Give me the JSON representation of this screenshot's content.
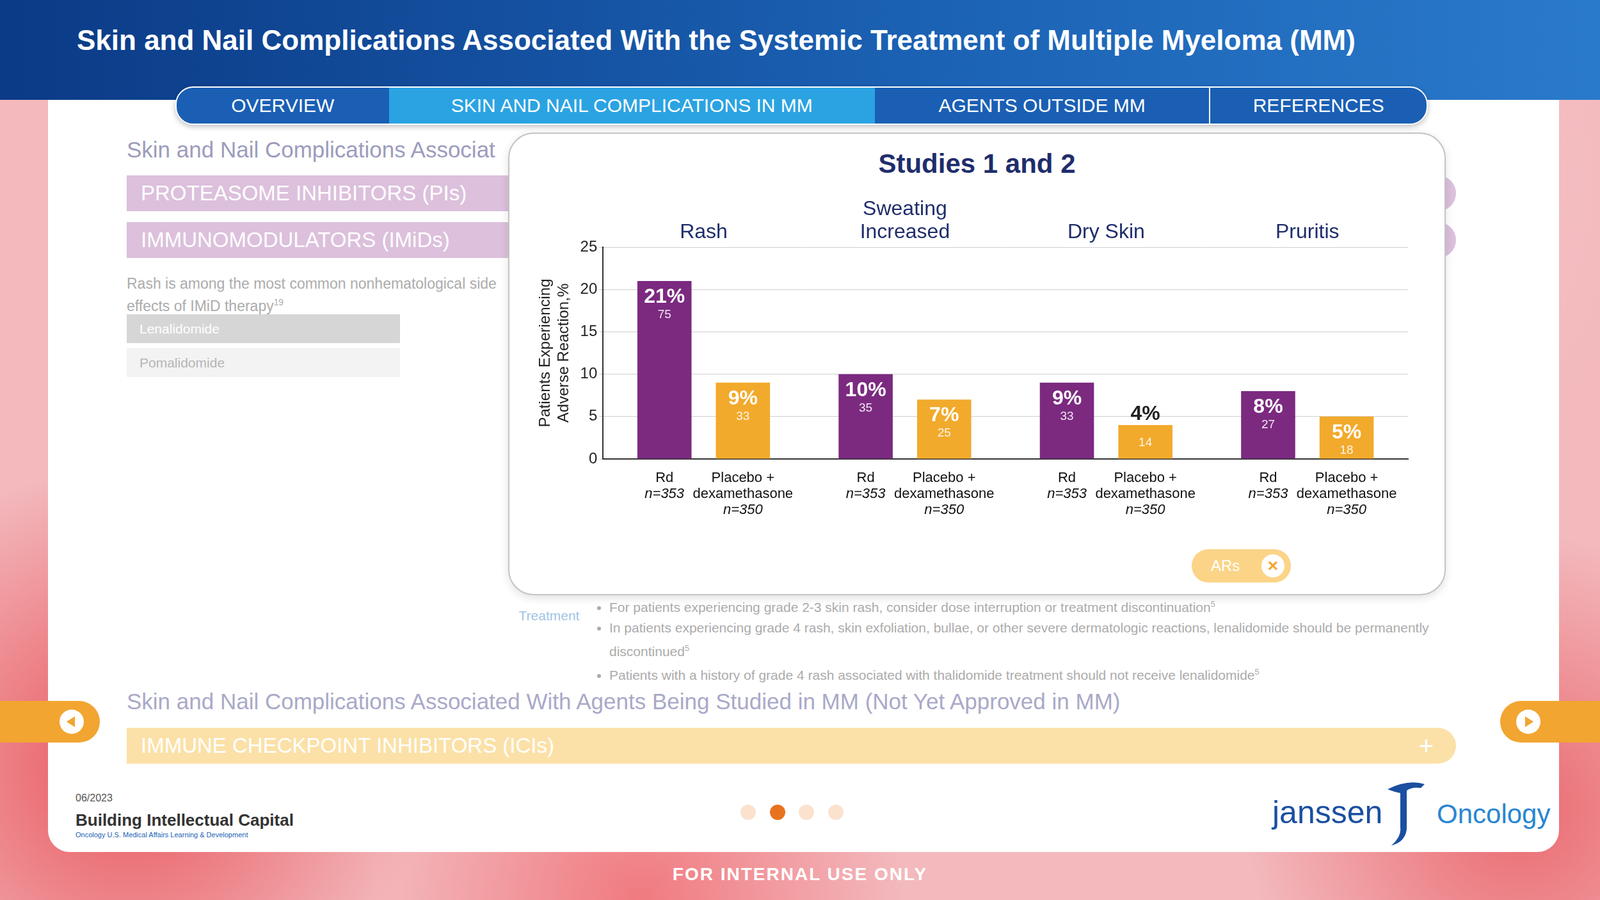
{
  "page": {
    "header": {
      "title": "Skin and Nail Complications Associated With the Systemic Treatment of Multiple Myeloma (MM)"
    },
    "nav": [
      {
        "label": "OVERVIEW",
        "active": false
      },
      {
        "label": "SKIN AND NAIL COMPLICATIONS IN MM",
        "active": true
      },
      {
        "label": "AGENTS OUTSIDE MM",
        "active": false
      },
      {
        "label": "REFERENCES",
        "active": false
      }
    ],
    "section_1": {
      "heading": "Skin and Nail Complications Associat",
      "bars": [
        "PROTEASOME INHIBITORS (PIs)",
        "IMMUNOMODULATORS (IMiDs)"
      ],
      "note": {
        "text": "Rash is among the most common nonhematological side effects of IMiD therapy",
        "ref": "19"
      },
      "agents": [
        "Lenalidomide",
        "Pomalidomide"
      ],
      "icon_label": "Treatment",
      "bullets": [
        {
          "text": "For patients experiencing grade 2-3 skin rash, consider dose interruption or treatment discontinuation",
          "ref": "5"
        },
        {
          "text": "In patients experiencing grade 4 rash, skin exfoliation, bullae, or other severe dermatologic reactions, lenalidomide should be permanently discontinued",
          "ref": "5"
        },
        {
          "text": "Patients with a history of grade 4 rash associated with thalidomide treatment should not receive lenalidomide",
          "ref": "5"
        }
      ]
    },
    "section_2": {
      "heading": "Skin and Nail Complications Associated With Agents Being Studied in MM (Not Yet Approved in MM)",
      "bar": "IMMUNE CHECKPOINT INHIBITORS (ICIs)",
      "expand": "+"
    },
    "modal_button": {
      "label": "ARs",
      "close": "×"
    },
    "footer": {
      "date": "06/2023",
      "brand": "Building Intellectual Capital",
      "brand_sub": "Oncology U.S. Medical Affairs Learning & Development",
      "logo": "janssen",
      "logo_sub": "Oncology",
      "notice": "FOR INTERNAL USE ONLY"
    }
  },
  "chart_data": {
    "type": "bar",
    "title": "Studies 1 and 2",
    "categories": [
      "Rash",
      "Sweating Increased",
      "Dry Skin",
      "Pruritis"
    ],
    "y_label": "Patients Experiencing Adverse Reaction,%",
    "ylim": [
      0,
      25
    ],
    "yticks": [
      0,
      5,
      10,
      15,
      20,
      25
    ],
    "grid": true,
    "data_labels": true,
    "series": [
      {
        "name": "Rd",
        "n_label": "n=353",
        "color": "#7b2a80",
        "values": [
          21,
          10,
          9,
          8
        ],
        "value_labels": [
          "21%",
          "10%",
          "9%",
          "8%"
        ],
        "counts": [
          75,
          35,
          33,
          27
        ]
      },
      {
        "name": "Placebo + dexamethasone",
        "n_label": "n=350",
        "color": "#f2aa2c",
        "values": [
          9,
          7,
          4,
          5
        ],
        "value_labels": [
          "9%",
          "7%",
          "4%",
          "5%"
        ],
        "counts": [
          33,
          25,
          14,
          18
        ]
      }
    ]
  }
}
